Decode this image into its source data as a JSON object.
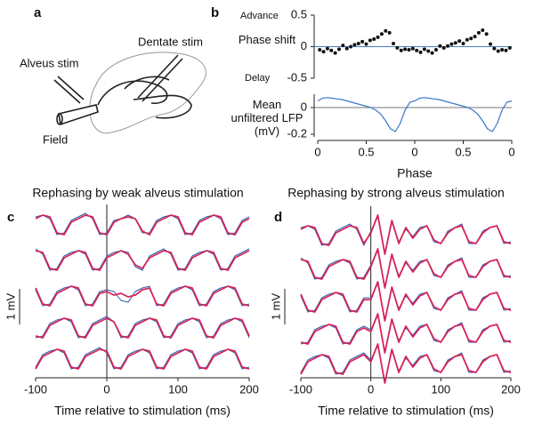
{
  "panel_labels": [
    "a",
    "b",
    "c",
    "d"
  ],
  "diagram": {
    "labels": [
      "Alveus stim",
      "Dentate stim",
      "Field"
    ]
  },
  "chart_data": [
    {
      "type": "scatter",
      "ylabel": "Phase shift",
      "annotations": [
        "Advance",
        "Delay"
      ],
      "xlim": [
        0,
        2
      ],
      "ylim": [
        -0.5,
        0.5
      ],
      "yticks": [
        0.5,
        0,
        -0.5
      ],
      "reference_line": 0,
      "reference_color": "#4a7fc1",
      "color": "#111111",
      "x": [
        0.02,
        0.06,
        0.1,
        0.14,
        0.18,
        0.22,
        0.26,
        0.3,
        0.34,
        0.38,
        0.42,
        0.46,
        0.5,
        0.54,
        0.58,
        0.62,
        0.66,
        0.7,
        0.74,
        0.78,
        0.82,
        0.86,
        0.9,
        0.94,
        0.98,
        1.02,
        1.06,
        1.1,
        1.14,
        1.18,
        1.22,
        1.26,
        1.3,
        1.34,
        1.38,
        1.42,
        1.46,
        1.5,
        1.54,
        1.58,
        1.62,
        1.66,
        1.7,
        1.74,
        1.78,
        1.82,
        1.86,
        1.9,
        1.94,
        1.98
      ],
      "values": [
        -0.05,
        -0.08,
        -0.03,
        -0.06,
        -0.1,
        -0.04,
        0.02,
        -0.03,
        0,
        0.03,
        0.05,
        0.08,
        0.04,
        0.1,
        0.12,
        0.15,
        0.2,
        0.25,
        0.22,
        0.05,
        -0.02,
        -0.06,
        -0.04,
        -0.05,
        -0.03,
        -0.06,
        -0.09,
        -0.04,
        -0.07,
        -0.1,
        -0.05,
        0.01,
        -0.02,
        0.01,
        0.04,
        0.06,
        0.09,
        0.05,
        0.11,
        0.13,
        0.16,
        0.22,
        0.26,
        0.2,
        0.04,
        -0.03,
        -0.07,
        -0.05,
        -0.06,
        -0.02
      ]
    },
    {
      "type": "line",
      "ylabel": "Mean unfiltered LFP (mV)",
      "xlabel": "Phase",
      "xlim": [
        0,
        2
      ],
      "ylim": [
        -0.22,
        0.1
      ],
      "yticks": [
        0,
        -0.2
      ],
      "xticks": [
        0,
        0.5,
        {
          "value": 1,
          "label": "0"
        },
        {
          "value": 1.5,
          "label": "0.5"
        },
        {
          "value": 2,
          "label": "0"
        }
      ],
      "reference_line": 0,
      "reference_color": "#777777",
      "color": "#3a78c9",
      "x": [
        0,
        0.05,
        0.1,
        0.15,
        0.2,
        0.25,
        0.3,
        0.35,
        0.4,
        0.45,
        0.5,
        0.55,
        0.6,
        0.65,
        0.7,
        0.75,
        0.8,
        0.85,
        0.9,
        0.95,
        1,
        1.05,
        1.1,
        1.15,
        1.2,
        1.25,
        1.3,
        1.35,
        1.4,
        1.45,
        1.5,
        1.55,
        1.6,
        1.65,
        1.7,
        1.75,
        1.8,
        1.85,
        1.9,
        1.95,
        2
      ],
      "values": [
        0.05,
        0.07,
        0.075,
        0.07,
        0.065,
        0.06,
        0.05,
        0.04,
        0.03,
        0.02,
        0.01,
        0,
        -0.02,
        -0.05,
        -0.1,
        -0.16,
        -0.18,
        -0.12,
        -0.02,
        0.04,
        0.05,
        0.07,
        0.075,
        0.07,
        0.065,
        0.06,
        0.05,
        0.04,
        0.03,
        0.02,
        0.01,
        0,
        -0.02,
        -0.05,
        -0.1,
        -0.16,
        -0.18,
        -0.12,
        -0.02,
        0.04,
        0.05
      ]
    },
    {
      "type": "line",
      "title": "Rephasing by weak alveus stimulation",
      "xlabel": "Time relative to stimulation (ms)",
      "xlim": [
        -100,
        200
      ],
      "xticks": [
        -100,
        0,
        100,
        200
      ],
      "stimulus_time": 0,
      "scale_bar": {
        "label": "1 mV",
        "value": 1
      },
      "x": [
        -100,
        -90,
        -80,
        -70,
        -60,
        -50,
        -40,
        -30,
        -20,
        -10,
        0,
        10,
        20,
        30,
        40,
        50,
        60,
        70,
        80,
        90,
        100,
        110,
        120,
        130,
        140,
        150,
        160,
        170,
        180,
        190,
        200
      ],
      "rows": [
        [
          {
            "color": "#2a5caa",
            "values": [
              0.15,
              0.2,
              0.1,
              -0.35,
              -0.3,
              0.05,
              0.15,
              0.25,
              0.1,
              -0.35,
              -0.3,
              0.05,
              0.1,
              0.2,
              0.1,
              -0.3,
              -0.3,
              0.05,
              0.15,
              0.2,
              0.1,
              -0.35,
              -0.3,
              0.05,
              0.15,
              0.2,
              0.1,
              -0.35,
              -0.3,
              0.05,
              0.15
            ]
          },
          {
            "color": "#d6245a",
            "values": [
              0.1,
              0.2,
              0.15,
              -0.3,
              -0.35,
              0,
              0.1,
              0.2,
              0.15,
              -0.3,
              -0.35,
              0,
              0.1,
              0.15,
              0.1,
              -0.25,
              -0.35,
              0,
              0.1,
              0.2,
              0.15,
              -0.3,
              -0.35,
              0,
              0.1,
              0.2,
              0.15,
              -0.3,
              -0.35,
              0,
              0.1
            ]
          }
        ],
        [
          {
            "color": "#2a5caa",
            "values": [
              0.25,
              0.1,
              -0.35,
              -0.3,
              0.05,
              0.15,
              0.2,
              0.1,
              -0.35,
              -0.3,
              0.05,
              0.15,
              0.2,
              0.15,
              -0.25,
              -0.35,
              0.05,
              0.15,
              0.25,
              0.1,
              -0.35,
              -0.3,
              0.05,
              0.15,
              0.2,
              0.1,
              -0.35,
              -0.3,
              0.05,
              0.15,
              0.25
            ]
          },
          {
            "color": "#d6245a",
            "values": [
              0.2,
              0.15,
              -0.3,
              -0.35,
              0,
              0.1,
              0.2,
              0.15,
              -0.3,
              -0.35,
              0,
              0.1,
              0.2,
              0.1,
              -0.2,
              -0.3,
              0,
              0.1,
              0.2,
              0.15,
              -0.3,
              -0.35,
              0,
              0.1,
              0.2,
              0.15,
              -0.3,
              -0.35,
              0,
              0.1,
              0.2
            ]
          }
        ],
        [
          {
            "color": "#2a5caa",
            "values": [
              0.1,
              -0.35,
              -0.3,
              0.05,
              0.15,
              0.2,
              0.1,
              -0.35,
              -0.3,
              0.05,
              0.1,
              0.05,
              -0.2,
              -0.25,
              0.05,
              0.15,
              0.2,
              -0.35,
              -0.3,
              0.05,
              0.15,
              0.2,
              0.1,
              -0.35,
              -0.3,
              0.05,
              0.15,
              0.2,
              0.1,
              -0.35,
              -0.3
            ]
          },
          {
            "color": "#d6245a",
            "values": [
              0.15,
              -0.3,
              -0.35,
              0,
              0.1,
              0.2,
              0.15,
              -0.3,
              -0.35,
              0,
              0.05,
              -0.05,
              0,
              -0.1,
              -0.05,
              0.1,
              0.15,
              -0.3,
              -0.35,
              0,
              0.1,
              0.2,
              0.15,
              -0.3,
              -0.35,
              0,
              0.1,
              0.2,
              0.15,
              -0.3,
              -0.35
            ]
          }
        ],
        [
          {
            "color": "#2a5caa",
            "values": [
              -0.35,
              -0.3,
              0.05,
              0.15,
              0.2,
              0.1,
              -0.35,
              -0.3,
              0.05,
              0.15,
              0.25,
              0.1,
              -0.35,
              -0.3,
              0.05,
              0.15,
              0.2,
              0.1,
              -0.35,
              -0.3,
              0.05,
              0.15,
              0.2,
              0.1,
              -0.35,
              -0.3,
              0.05,
              0.15,
              0.2,
              0.1,
              -0.35
            ]
          },
          {
            "color": "#d6245a",
            "values": [
              -0.3,
              -0.35,
              0,
              0.1,
              0.2,
              0.15,
              -0.3,
              -0.35,
              0,
              0.1,
              0.2,
              0.1,
              -0.3,
              -0.35,
              0,
              0.1,
              0.2,
              0.15,
              -0.3,
              -0.35,
              0,
              0.1,
              0.2,
              0.15,
              -0.3,
              -0.35,
              0,
              0.1,
              0.2,
              0.15,
              -0.3
            ]
          }
        ],
        [
          {
            "color": "#2a5caa",
            "values": [
              -0.3,
              0.05,
              0.15,
              0.2,
              0.1,
              -0.35,
              -0.3,
              0.05,
              0.15,
              0.25,
              0.1,
              -0.35,
              -0.3,
              0.05,
              0.15,
              0.2,
              0.1,
              -0.35,
              -0.3,
              0.05,
              0.15,
              0.2,
              0.1,
              -0.35,
              -0.3,
              0.05,
              0.15,
              0.2,
              0.1,
              -0.35,
              -0.3
            ]
          },
          {
            "color": "#d6245a",
            "values": [
              -0.35,
              0,
              0.1,
              0.2,
              0.15,
              -0.3,
              -0.35,
              0,
              0.1,
              0.2,
              0.15,
              -0.3,
              -0.35,
              0,
              0.1,
              0.2,
              0.15,
              -0.3,
              -0.35,
              0,
              0.1,
              0.2,
              0.15,
              -0.3,
              -0.35,
              0,
              0.1,
              0.2,
              0.15,
              -0.3,
              -0.35
            ]
          }
        ]
      ]
    },
    {
      "type": "line",
      "title": "Rephasing by strong alveus stimulation",
      "xlabel": "Time relative to stimulation (ms)",
      "xlim": [
        -100,
        200
      ],
      "xticks": [
        -100,
        0,
        100,
        200
      ],
      "stimulus_time": 0,
      "scale_bar": {
        "label": "1 mV",
        "value": 1
      },
      "x": [
        -100,
        -90,
        -80,
        -70,
        -60,
        -50,
        -40,
        -30,
        -20,
        -10,
        0,
        10,
        20,
        30,
        40,
        50,
        60,
        70,
        80,
        90,
        100,
        110,
        120,
        130,
        140,
        150,
        160,
        170,
        180,
        190,
        200
      ],
      "rows": [
        [
          {
            "color": "#2a5caa",
            "values": [
              0.15,
              0.2,
              0.1,
              -0.35,
              -0.3,
              0.05,
              0.15,
              0.25,
              0.1,
              -0.35,
              0.05,
              0.45,
              -0.55,
              0.3,
              -0.25,
              0.1,
              -0.1,
              0.15,
              0.2,
              -0.25,
              -0.3,
              0.05,
              0.15,
              0.25,
              -0.3,
              -0.3,
              0.05,
              0.15,
              0.2,
              -0.3,
              -0.25
            ]
          },
          {
            "color": "#d6245a",
            "values": [
              0.1,
              0.2,
              0.15,
              -0.3,
              -0.35,
              0,
              0.1,
              0.2,
              0.15,
              -0.3,
              0,
              0.5,
              -0.6,
              0.35,
              -0.3,
              0.15,
              -0.15,
              0.1,
              0.2,
              -0.2,
              -0.3,
              0,
              0.15,
              0.2,
              -0.25,
              -0.3,
              0,
              0.15,
              0.2,
              -0.25,
              -0.3
            ]
          }
        ],
        [
          {
            "color": "#2a5caa",
            "values": [
              0.25,
              0.1,
              -0.35,
              -0.3,
              0.05,
              0.15,
              0.2,
              0.1,
              -0.35,
              -0.3,
              0.05,
              0.45,
              -0.55,
              0.3,
              -0.25,
              0.1,
              -0.1,
              0.15,
              0.2,
              -0.25,
              -0.3,
              0.05,
              0.15,
              0.25,
              -0.3,
              -0.3,
              0.05,
              0.15,
              0.2,
              -0.3,
              -0.25
            ]
          },
          {
            "color": "#d6245a",
            "values": [
              0.2,
              0.15,
              -0.3,
              -0.35,
              0,
              0.1,
              0.2,
              0.15,
              -0.3,
              -0.35,
              0,
              0.5,
              -0.6,
              0.35,
              -0.3,
              0.15,
              -0.15,
              0.1,
              0.2,
              -0.2,
              -0.3,
              0,
              0.15,
              0.2,
              -0.25,
              -0.3,
              0,
              0.15,
              0.2,
              -0.25,
              -0.3
            ]
          }
        ],
        [
          {
            "color": "#2a5caa",
            "values": [
              0.1,
              -0.35,
              -0.3,
              0.05,
              0.15,
              0.2,
              0.1,
              -0.35,
              -0.3,
              0.05,
              0.05,
              0.45,
              -0.55,
              0.3,
              -0.25,
              0.1,
              -0.1,
              0.15,
              0.2,
              -0.25,
              -0.3,
              0.05,
              0.15,
              0.25,
              -0.3,
              -0.3,
              0.05,
              0.15,
              0.2,
              -0.3,
              -0.25
            ]
          },
          {
            "color": "#d6245a",
            "values": [
              0.15,
              -0.3,
              -0.35,
              0,
              0.1,
              0.2,
              0.15,
              -0.3,
              -0.35,
              0,
              0,
              0.5,
              -0.6,
              0.35,
              -0.3,
              0.15,
              -0.15,
              0.1,
              0.2,
              -0.2,
              -0.3,
              0,
              0.15,
              0.2,
              -0.25,
              -0.3,
              0,
              0.15,
              0.2,
              -0.25,
              -0.3
            ]
          }
        ],
        [
          {
            "color": "#2a5caa",
            "values": [
              -0.35,
              -0.3,
              0.05,
              0.15,
              0.2,
              0.1,
              -0.35,
              -0.3,
              0.05,
              0.15,
              0.05,
              0.45,
              -0.55,
              0.3,
              -0.25,
              0.1,
              -0.1,
              0.15,
              0.2,
              -0.25,
              -0.3,
              0.05,
              0.15,
              0.25,
              -0.3,
              -0.3,
              0.05,
              0.15,
              0.2,
              -0.3,
              -0.25
            ]
          },
          {
            "color": "#d6245a",
            "values": [
              -0.3,
              -0.35,
              0,
              0.1,
              0.2,
              0.15,
              -0.3,
              -0.35,
              0,
              0.1,
              0,
              0.5,
              -0.6,
              0.35,
              -0.3,
              0.15,
              -0.15,
              0.1,
              0.2,
              -0.2,
              -0.3,
              0,
              0.15,
              0.2,
              -0.25,
              -0.3,
              0,
              0.15,
              0.2,
              -0.25,
              -0.3
            ]
          }
        ],
        [
          {
            "color": "#2a5caa",
            "values": [
              -0.3,
              0.05,
              0.15,
              0.2,
              0.1,
              -0.35,
              -0.3,
              0.05,
              0.15,
              0.25,
              0.05,
              0.45,
              -0.55,
              0.3,
              -0.25,
              0.1,
              -0.1,
              0.15,
              0.2,
              -0.25,
              -0.3,
              0.05,
              0.15,
              0.25,
              -0.3,
              -0.3,
              0.05,
              0.15,
              0.2,
              -0.3,
              -0.25
            ]
          },
          {
            "color": "#d6245a",
            "values": [
              -0.35,
              0,
              0.1,
              0.2,
              0.15,
              -0.3,
              -0.35,
              0,
              0.1,
              0.2,
              0,
              0.5,
              -0.6,
              0.35,
              -0.3,
              0.15,
              -0.15,
              0.1,
              0.2,
              -0.2,
              -0.3,
              0,
              0.15,
              0.2,
              -0.25,
              -0.3,
              0,
              0.15,
              0.2,
              -0.25,
              -0.3
            ]
          }
        ]
      ]
    }
  ]
}
